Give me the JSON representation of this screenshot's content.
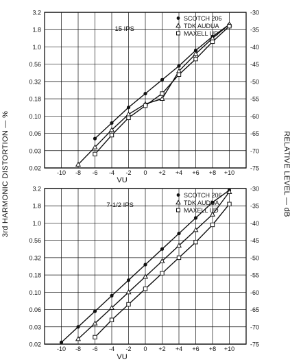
{
  "left_axis_label": "3rd HARMONIC DISTORTION — %",
  "right_axis_label": "RELATIVE LEVEL — dB",
  "colors": {
    "ink": "#111111",
    "background": "#ffffff"
  },
  "chart_data": [
    {
      "type": "line",
      "title": "",
      "speed_label": "15 IPS",
      "xlabel": "VU",
      "x_ticks": [
        -10,
        -8,
        -6,
        -4,
        -2,
        0,
        2,
        4,
        6,
        8,
        10
      ],
      "x_tick_labels": [
        "-10",
        "-8",
        "-6",
        "-4",
        "-2",
        "0",
        "+2",
        "+4",
        "+6",
        "+8",
        "+10"
      ],
      "xlim": [
        -12,
        12
      ],
      "y_left_ticks": [
        "3.2",
        "1.8",
        "1.0",
        "0.56",
        "0.32",
        "0.18",
        "0.10",
        "0.06",
        "0.03",
        "0.02"
      ],
      "y_right_ticks": [
        "-30",
        "-35",
        "-40",
        "-45",
        "-50",
        "-55",
        "-60",
        "-65",
        "-70",
        "-75"
      ],
      "ylabel_left": "3rd HARMONIC DISTORTION — %",
      "ylabel_right": "RELATIVE LEVEL — dB",
      "ylim_db": [
        -75,
        -30
      ],
      "y_log_scale": true,
      "grid": true,
      "legend_position": "top-right",
      "series": [
        {
          "name": "SCOTCH 206",
          "marker": "filled-circle",
          "x": [
            -6,
            -4,
            -2,
            0,
            2,
            4,
            6,
            8,
            10
          ],
          "y_db": [
            -66.5,
            -62,
            -57.5,
            -53.5,
            -49.5,
            -45.5,
            -41,
            -37,
            -33.5
          ]
        },
        {
          "name": "TDK AUDUA",
          "marker": "triangle",
          "x": [
            -8,
            -6,
            -4,
            -2,
            0,
            2,
            4,
            6,
            8,
            10
          ],
          "y_db": [
            -74,
            -69,
            -64,
            -59.5,
            -56.5,
            -55,
            -47,
            -42,
            -37.5,
            -33.5
          ]
        },
        {
          "name": "MAXELL UD",
          "marker": "square",
          "x": [
            -6,
            -4,
            -2,
            0,
            2,
            4,
            6,
            8,
            10
          ],
          "y_db": [
            -71,
            -65.5,
            -60.5,
            -57,
            -53.5,
            -48,
            -43.5,
            -38.5,
            -34
          ]
        }
      ]
    },
    {
      "type": "line",
      "title": "",
      "speed_label": "7-1/2 IPS",
      "xlabel": "VU",
      "x_ticks": [
        -10,
        -8,
        -6,
        -4,
        -2,
        0,
        2,
        4,
        6,
        8,
        10
      ],
      "x_tick_labels": [
        "-10",
        "-8",
        "-6",
        "-4",
        "-2",
        "0",
        "+2",
        "+4",
        "+6",
        "+8",
        "+10"
      ],
      "xlim": [
        -12,
        12
      ],
      "y_left_ticks": [
        "3.2",
        "1.8",
        "1.0",
        "0.56",
        "0.32",
        "0.18",
        "0.10",
        "0.06",
        "0.03",
        "0.02"
      ],
      "y_right_ticks": [
        "-30",
        "-35",
        "-40",
        "-45",
        "-50",
        "-55",
        "-60",
        "-65",
        "-70",
        "-75"
      ],
      "ylabel_left": "3rd HARMONIC DISTORTION — %",
      "ylabel_right": "RELATIVE LEVEL — dB",
      "ylim_db": [
        -75,
        -30
      ],
      "y_log_scale": true,
      "grid": true,
      "legend_position": "top-right",
      "series": [
        {
          "name": "SCOTCH 206",
          "marker": "filled-circle",
          "x": [
            -10,
            -8,
            -6,
            -4,
            -2,
            0,
            2,
            4,
            6,
            8,
            10
          ],
          "y_db": [
            -74.5,
            -70,
            -65.5,
            -61,
            -56.5,
            -52,
            -47.5,
            -43,
            -38.5,
            -34,
            -30.5
          ]
        },
        {
          "name": "TDK AUDUA",
          "marker": "triangle",
          "x": [
            -8,
            -6,
            -4,
            -2,
            0,
            2,
            4,
            6,
            8,
            10
          ],
          "y_db": [
            -73.5,
            -69,
            -64.5,
            -60,
            -55.5,
            -51,
            -46.5,
            -42,
            -37.5,
            -31
          ]
        },
        {
          "name": "MAXELL UD",
          "marker": "square",
          "x": [
            -6,
            -4,
            -2,
            0,
            2,
            4,
            6,
            8,
            10
          ],
          "y_db": [
            -73,
            -68,
            -63.5,
            -59,
            -54.5,
            -50,
            -45.5,
            -40.5,
            -34.5
          ]
        }
      ]
    }
  ]
}
